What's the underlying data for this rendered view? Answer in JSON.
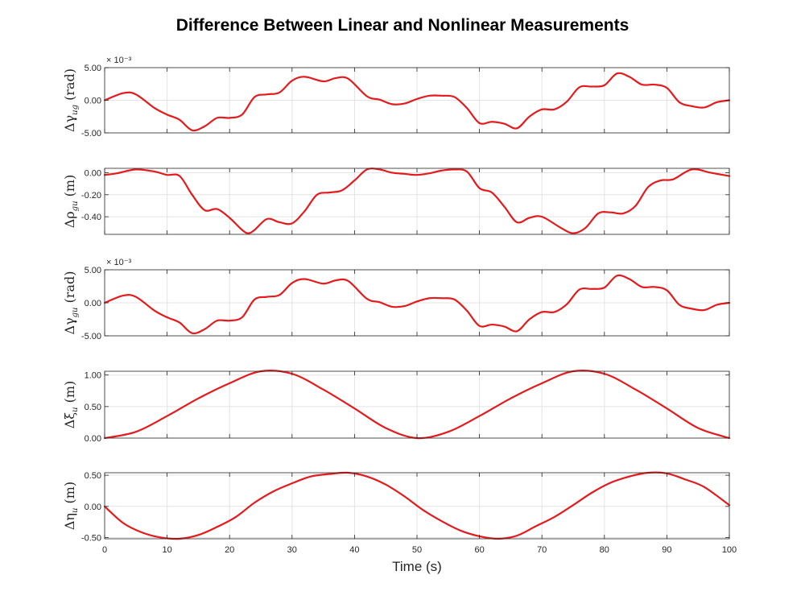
{
  "title": "Difference Between Linear and Nonlinear Measurements",
  "xlabel": "Time (s)",
  "line_color": "#e41a1c",
  "chart_data": [
    {
      "type": "line",
      "ylabel": {
        "prefix": "Δγ",
        "sub": "ug",
        "unit": "(rad)"
      },
      "exponent": "× 10⁻³",
      "xlim": [
        0,
        100
      ],
      "ylim": [
        -0.005,
        0.005
      ],
      "yticks": [
        -0.005,
        0,
        0.005
      ],
      "ytick_labels": [
        "-5.00",
        "0.00",
        "5.00"
      ],
      "x": [
        0,
        3,
        5,
        8,
        10,
        12,
        14,
        16,
        18,
        20,
        22,
        24,
        26,
        28,
        30,
        32,
        35,
        37,
        39,
        42,
        44,
        46,
        48,
        50,
        52,
        54,
        56,
        58,
        60,
        62,
        64,
        66,
        68,
        70,
        72,
        74,
        76,
        78,
        80,
        82,
        84,
        86,
        88,
        90,
        92,
        94,
        96,
        98,
        100
      ],
      "values": [
        0,
        0.0011,
        0.0009,
        -0.0012,
        -0.0022,
        -0.003,
        -0.0046,
        -0.004,
        -0.0027,
        -0.0027,
        -0.0022,
        0.0005,
        0.0009,
        0.0012,
        0.003,
        0.0036,
        0.0029,
        0.0034,
        0.0033,
        0.0006,
        0.0001,
        -0.0006,
        -0.0005,
        0.0002,
        0.0007,
        0.0007,
        0.0005,
        -0.0012,
        -0.0035,
        -0.0033,
        -0.0036,
        -0.0043,
        -0.0025,
        -0.0014,
        -0.0014,
        -0.0002,
        0.002,
        0.0021,
        0.0023,
        0.0041,
        0.0036,
        0.0024,
        0.0024,
        0.0019,
        -0.0003,
        -0.0009,
        -0.0011,
        -0.0003,
        0
      ]
    },
    {
      "type": "line",
      "ylabel": {
        "prefix": "Δρ",
        "sub": "gu",
        "unit": "(m)"
      },
      "xlim": [
        0,
        100
      ],
      "ylim": [
        -0.56,
        0.04
      ],
      "yticks": [
        -0.4,
        -0.2,
        0
      ],
      "ytick_labels": [
        "-0.40",
        "-0.20",
        "0.00"
      ],
      "x": [
        0,
        2,
        5,
        8,
        10,
        12,
        14,
        16,
        18,
        20,
        22,
        23,
        24,
        26,
        28,
        30,
        32,
        34,
        36,
        38,
        40,
        42,
        44,
        46,
        48,
        50,
        52,
        54,
        56,
        58,
        60,
        62,
        64,
        66,
        68,
        70,
        73,
        75,
        77,
        79,
        81,
        83,
        85,
        87,
        89,
        91,
        94,
        97,
        100
      ],
      "values": [
        -0.02,
        -0.005,
        0.03,
        0.01,
        -0.02,
        -0.03,
        -0.2,
        -0.34,
        -0.33,
        -0.41,
        -0.52,
        -0.55,
        -0.52,
        -0.42,
        -0.45,
        -0.46,
        -0.35,
        -0.2,
        -0.18,
        -0.16,
        -0.07,
        0.03,
        0.03,
        0,
        -0.01,
        -0.02,
        -0.005,
        0.02,
        0.03,
        0.01,
        -0.14,
        -0.18,
        -0.31,
        -0.45,
        -0.41,
        -0.4,
        -0.5,
        -0.55,
        -0.5,
        -0.37,
        -0.36,
        -0.37,
        -0.3,
        -0.13,
        -0.07,
        -0.06,
        0.03,
        0,
        -0.03
      ]
    },
    {
      "type": "line",
      "ylabel": {
        "prefix": "Δγ",
        "sub": "gu",
        "unit": "(rad)"
      },
      "exponent": "× 10⁻³",
      "xlim": [
        0,
        100
      ],
      "ylim": [
        -0.005,
        0.005
      ],
      "yticks": [
        -0.005,
        0,
        0.005
      ],
      "ytick_labels": [
        "-5.00",
        "0.00",
        "5.00"
      ],
      "x": [
        0,
        3,
        5,
        8,
        10,
        12,
        14,
        16,
        18,
        20,
        22,
        24,
        26,
        28,
        30,
        32,
        35,
        37,
        39,
        42,
        44,
        46,
        48,
        50,
        52,
        54,
        56,
        58,
        60,
        62,
        64,
        66,
        68,
        70,
        72,
        74,
        76,
        78,
        80,
        82,
        84,
        86,
        88,
        90,
        92,
        94,
        96,
        98,
        100
      ],
      "values": [
        0,
        0.0011,
        0.0009,
        -0.0012,
        -0.0022,
        -0.003,
        -0.0046,
        -0.004,
        -0.0027,
        -0.0027,
        -0.0022,
        0.0005,
        0.0009,
        0.0012,
        0.003,
        0.0036,
        0.0029,
        0.0034,
        0.0033,
        0.0006,
        0.0001,
        -0.0006,
        -0.0005,
        0.0002,
        0.0007,
        0.0007,
        0.0005,
        -0.0012,
        -0.0035,
        -0.0033,
        -0.0036,
        -0.0043,
        -0.0025,
        -0.0014,
        -0.0014,
        -0.0002,
        0.002,
        0.0021,
        0.0023,
        0.0041,
        0.0036,
        0.0024,
        0.0024,
        0.0019,
        -0.0003,
        -0.0009,
        -0.0011,
        -0.0003,
        0
      ]
    },
    {
      "type": "line",
      "ylabel": {
        "prefix": "Δξ",
        "sub": "u",
        "unit": "(m)"
      },
      "xlim": [
        0,
        100
      ],
      "ylim": [
        0,
        1.06
      ],
      "yticks": [
        0,
        0.5,
        1.0
      ],
      "ytick_labels": [
        "0.00",
        "0.50",
        "1.00"
      ],
      "x": [
        0,
        5,
        10,
        15,
        20,
        25,
        30,
        35,
        40,
        45,
        50,
        55,
        60,
        65,
        70,
        75,
        80,
        85,
        90,
        95,
        100
      ],
      "values": [
        0,
        0.1,
        0.35,
        0.63,
        0.87,
        1.06,
        1.02,
        0.77,
        0.47,
        0.16,
        0,
        0.1,
        0.35,
        0.63,
        0.87,
        1.06,
        1.02,
        0.77,
        0.47,
        0.16,
        0
      ]
    },
    {
      "type": "line",
      "ylabel": {
        "prefix": "Δη",
        "sub": "u",
        "unit": "(m)"
      },
      "xlim": [
        0,
        100
      ],
      "ylim": [
        -0.52,
        0.54
      ],
      "yticks": [
        -0.5,
        0,
        0.5
      ],
      "ytick_labels": [
        "-0.50",
        "0.00",
        "0.50"
      ],
      "xticks": [
        0,
        10,
        20,
        30,
        40,
        50,
        60,
        70,
        80,
        90,
        100
      ],
      "xtick_labels": [
        "0",
        "10",
        "20",
        "30",
        "40",
        "50",
        "60",
        "70",
        "80",
        "90",
        "100"
      ],
      "x": [
        0,
        3,
        6,
        9,
        12,
        15,
        18,
        21,
        24,
        27,
        30,
        33,
        36,
        39,
        42,
        45,
        48,
        51,
        54,
        57,
        60,
        63,
        66,
        69,
        72,
        75,
        78,
        81,
        84,
        87,
        90,
        93,
        96,
        100
      ],
      "values": [
        0,
        -0.27,
        -0.42,
        -0.5,
        -0.52,
        -0.46,
        -0.33,
        -0.17,
        0.06,
        0.24,
        0.37,
        0.48,
        0.52,
        0.54,
        0.48,
        0.35,
        0.16,
        -0.06,
        -0.24,
        -0.39,
        -0.48,
        -0.52,
        -0.47,
        -0.32,
        -0.17,
        0.02,
        0.22,
        0.38,
        0.48,
        0.54,
        0.53,
        0.43,
        0.31,
        0.02
      ]
    }
  ]
}
